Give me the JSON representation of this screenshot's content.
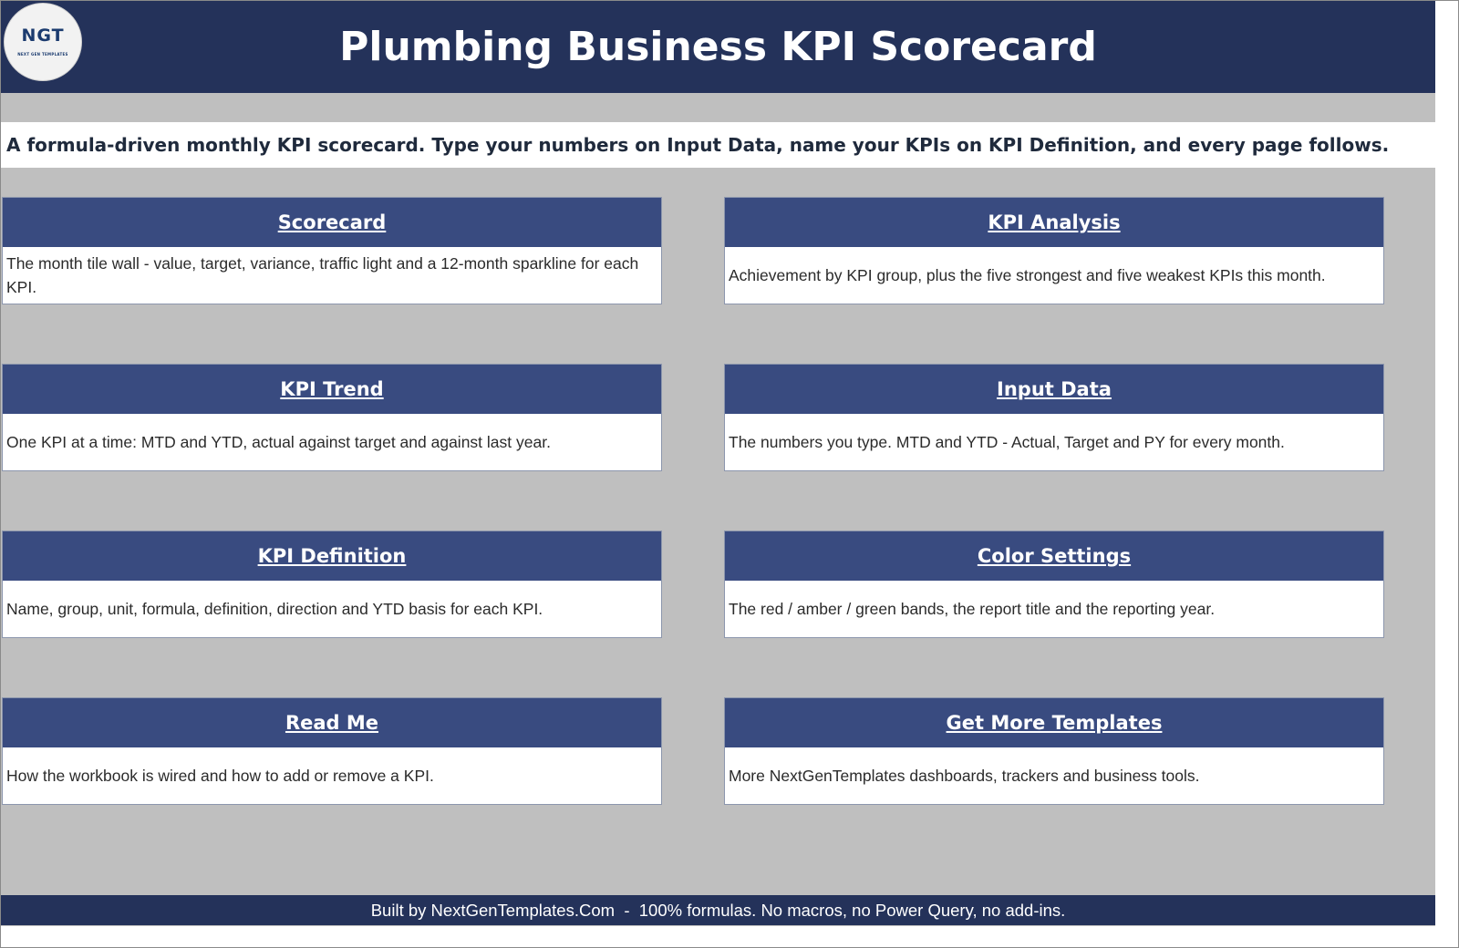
{
  "header": {
    "title": "Plumbing Business KPI Scorecard",
    "logo": {
      "text": "NGT",
      "subtext": "NEXT GEN TEMPLATES"
    }
  },
  "subtitle": "A formula-driven monthly KPI scorecard. Type your numbers on Input Data, name your KPIs on KPI Definition, and every page follows.",
  "cards": [
    {
      "title": "Scorecard",
      "description": "The month tile wall - value, target, variance, traffic light and a 12-month sparkline for each KPI."
    },
    {
      "title": "KPI Analysis",
      "description": "Achievement by KPI group, plus the five strongest and five weakest KPIs this month."
    },
    {
      "title": "KPI Trend",
      "description": "One KPI at a time: MTD and YTD, actual against target and against last year."
    },
    {
      "title": "Input Data",
      "description": "The numbers you type. MTD and YTD - Actual, Target and PY for every month."
    },
    {
      "title": "KPI Definition",
      "description": "Name, group, unit, formula, definition, direction and YTD basis for each KPI."
    },
    {
      "title": "Color Settings",
      "description": "The red / amber / green bands, the report title and the reporting year."
    },
    {
      "title": "Read Me",
      "description": "How the workbook is wired and how to add or remove a KPI."
    },
    {
      "title": "Get More Templates",
      "description": "More NextGenTemplates dashboards, trackers and business tools."
    }
  ],
  "footer": "Built by NextGenTemplates.Com  -  100% formulas. No macros, no Power Query, no add-ins.",
  "colors": {
    "header_bg": "#24325a",
    "card_header_bg": "#394b80",
    "page_bg": "#bfbfbf"
  }
}
